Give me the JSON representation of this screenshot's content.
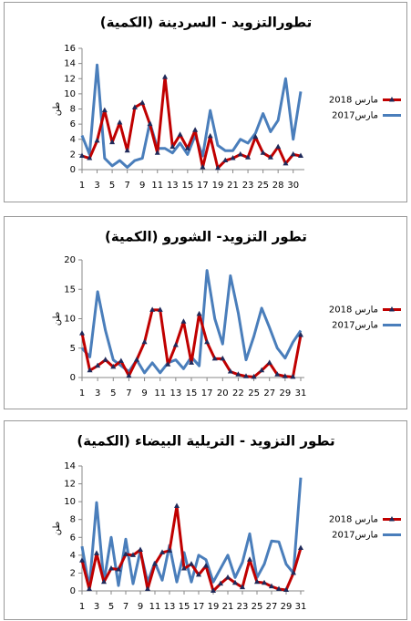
{
  "chart_data": [
    {
      "type": "line",
      "title": "تطورالتزويد - السردينة (الكمية)",
      "y_label": "طن",
      "categories": [
        "1",
        null,
        "3",
        null,
        "5",
        null,
        "7",
        null,
        "9",
        null,
        "11",
        null,
        "13",
        null,
        "15",
        null,
        "17",
        null,
        "19",
        null,
        "21",
        null,
        "23",
        null,
        "25",
        null,
        "28",
        null,
        "30",
        null
      ],
      "series": [
        {
          "name": "مارس 2018",
          "color": "#c00000",
          "marker": "triangle",
          "values": [
            1.8,
            1.5,
            3.8,
            7.8,
            3.6,
            6.2,
            2.5,
            8.2,
            8.8,
            6.0,
            2.2,
            12.2,
            3.0,
            4.6,
            2.8,
            5.2,
            0.3,
            4.4,
            0.2,
            1.2,
            1.5,
            2.0,
            1.6,
            4.3,
            2.2,
            1.6,
            3.0,
            0.8,
            2.0,
            1.8
          ]
        },
        {
          "name": "مارس2017",
          "color": "#4a7ebb",
          "values": [
            4.5,
            2.0,
            13.8,
            1.5,
            0.5,
            1.2,
            0.3,
            1.2,
            1.5,
            6.2,
            2.8,
            2.8,
            2.2,
            3.5,
            2.0,
            4.5,
            1.8,
            7.8,
            3.2,
            2.5,
            2.5,
            4.0,
            3.5,
            4.8,
            7.4,
            5.0,
            6.5,
            12.0,
            4.0,
            10.3
          ]
        }
      ],
      "ylim": [
        0,
        16
      ],
      "yticks": [
        0,
        2,
        4,
        6,
        8,
        10,
        12,
        14,
        16
      ],
      "grid": false
    },
    {
      "type": "line",
      "title": "تطور التزويد- الشورو (الكمية)",
      "y_label": "طن",
      "categories": [
        "1",
        null,
        "3",
        null,
        "5",
        null,
        "7",
        null,
        "9",
        null,
        "11",
        null,
        "13",
        null,
        "15",
        null,
        "17",
        null,
        "20",
        null,
        "22",
        null,
        "25",
        null,
        "27",
        null,
        "29",
        null,
        "31"
      ],
      "series": [
        {
          "name": "مارس 2018",
          "color": "#c00000",
          "marker": "triangle",
          "values": [
            7.5,
            1.2,
            2.0,
            3.0,
            1.8,
            2.8,
            0.3,
            3.0,
            6.0,
            11.5,
            11.5,
            2.2,
            5.5,
            9.5,
            2.5,
            10.8,
            6.0,
            3.2,
            3.2,
            1.0,
            0.5,
            0.2,
            0.1,
            1.2,
            2.5,
            0.5,
            0.2,
            0.1,
            7.2
          ]
        },
        {
          "name": "مارس2017",
          "color": "#4a7ebb",
          "values": [
            5.0,
            3.5,
            14.6,
            8.0,
            3.0,
            2.0,
            1.0,
            3.0,
            0.8,
            2.5,
            0.8,
            2.5,
            3.0,
            1.5,
            3.5,
            2.0,
            18.2,
            10.0,
            5.7,
            17.3,
            11.0,
            3.0,
            7.0,
            11.8,
            8.5,
            5.0,
            3.3,
            6.0,
            8.0
          ]
        }
      ],
      "ylim": [
        0,
        20
      ],
      "yticks": [
        0,
        5,
        10,
        15,
        20
      ],
      "grid": false
    },
    {
      "type": "line",
      "title": "تطور التزويد - التريلية البيضاء (الكمية)",
      "y_label": "طن",
      "categories": [
        "1",
        null,
        "3",
        null,
        "5",
        null,
        "7",
        null,
        "9",
        null,
        "11",
        null,
        "13",
        null,
        "15",
        null,
        "17",
        null,
        "19",
        null,
        "21",
        null,
        "23",
        null,
        "25",
        null,
        "27",
        null,
        "29",
        null,
        "31"
      ],
      "series": [
        {
          "name": "مارس 2018",
          "color": "#c00000",
          "marker": "triangle",
          "values": [
            3.4,
            0.2,
            4.2,
            1.0,
            2.5,
            2.4,
            4.1,
            4.0,
            4.6,
            0.2,
            3.0,
            4.3,
            4.5,
            9.5,
            2.5,
            3.0,
            1.8,
            2.8,
            0.0,
            0.8,
            1.5,
            0.9,
            0.4,
            3.5,
            1.0,
            0.9,
            0.5,
            0.2,
            0.1,
            2.0,
            4.8
          ]
        },
        {
          "name": "مارس2017",
          "color": "#4a7ebb",
          "values": [
            5.0,
            0.3,
            9.9,
            1.0,
            6.0,
            0.6,
            5.8,
            0.8,
            4.5,
            1.0,
            3.2,
            1.2,
            5.1,
            1.0,
            4.3,
            1.0,
            4.0,
            3.5,
            1.0,
            2.5,
            4.0,
            1.5,
            3.2,
            6.4,
            1.5,
            3.0,
            5.6,
            5.5,
            3.0,
            2.0,
            12.7
          ]
        }
      ],
      "ylim": [
        0,
        14
      ],
      "yticks": [
        0,
        2,
        4,
        6,
        8,
        10,
        12,
        14
      ],
      "grid": false
    }
  ]
}
